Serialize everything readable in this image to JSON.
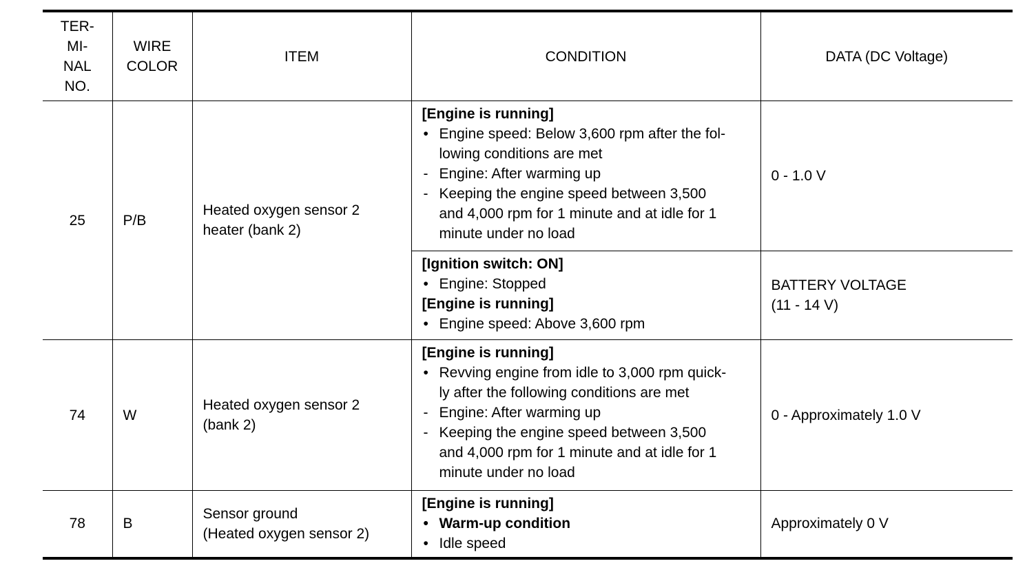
{
  "headers": {
    "terminal": [
      "TER-",
      "MI-",
      "NAL",
      "NO."
    ],
    "wire": [
      "WIRE",
      "COLOR"
    ],
    "item": "ITEM",
    "condition": "CONDITION",
    "data": "DATA (DC Voltage)"
  },
  "rows": [
    {
      "terminal": "25",
      "wire": "P/B",
      "item": [
        "Heated oxygen sensor 2",
        "heater (bank 2)"
      ],
      "conditions": [
        {
          "lines": [
            {
              "type": "heading",
              "text": "[Engine is running]"
            },
            {
              "type": "bullet",
              "text": [
                "Engine speed: Below 3,600 rpm after the fol-",
                "lowing conditions are met"
              ]
            },
            {
              "type": "dash",
              "text": [
                "Engine: After warming up"
              ]
            },
            {
              "type": "dash",
              "text": [
                "Keeping the engine speed between 3,500",
                "and 4,000 rpm for 1 minute and at idle for 1",
                "minute under no load"
              ]
            }
          ],
          "data": [
            "0 - 1.0 V"
          ]
        },
        {
          "lines": [
            {
              "type": "heading",
              "text": "[Ignition switch: ON]"
            },
            {
              "type": "bullet",
              "text": [
                "Engine: Stopped"
              ]
            },
            {
              "type": "heading",
              "text": "[Engine is running]"
            },
            {
              "type": "bullet",
              "text": [
                "Engine speed: Above 3,600 rpm"
              ]
            }
          ],
          "data": [
            "BATTERY VOLTAGE",
            "(11 - 14 V)"
          ]
        }
      ]
    },
    {
      "terminal": "74",
      "wire": "W",
      "item": [
        "Heated oxygen sensor 2",
        "(bank 2)"
      ],
      "conditions": [
        {
          "lines": [
            {
              "type": "heading",
              "text": "[Engine is running]"
            },
            {
              "type": "bullet",
              "text": [
                "Revving engine from idle to 3,000 rpm quick-",
                "ly after the following conditions are met"
              ]
            },
            {
              "type": "dash",
              "text": [
                "Engine: After warming up"
              ]
            },
            {
              "type": "dash",
              "text": [
                "Keeping the engine speed between 3,500",
                "and 4,000 rpm for 1 minute and at idle for 1",
                "minute under no load"
              ]
            }
          ],
          "data": [
            "0 - Approximately 1.0 V"
          ]
        }
      ]
    },
    {
      "terminal": "78",
      "wire": "B",
      "item": [
        "Sensor ground",
        "(Heated oxygen sensor 2)"
      ],
      "conditions": [
        {
          "lines": [
            {
              "type": "heading",
              "text": "[Engine is running]"
            },
            {
              "type": "bullet",
              "bold": true,
              "text": [
                "Warm-up condition"
              ]
            },
            {
              "type": "bullet",
              "text": [
                "Idle speed"
              ]
            }
          ],
          "data": [
            "Approximately 0 V"
          ]
        }
      ]
    }
  ],
  "marks": {
    "bullet": "•",
    "dash": "-"
  }
}
